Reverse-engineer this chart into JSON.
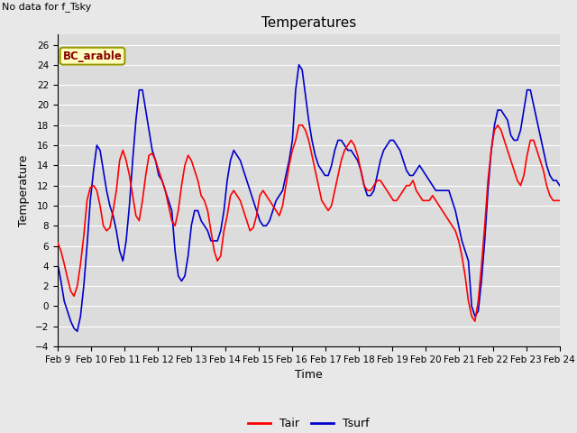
{
  "title": "Temperatures",
  "xlabel": "Time",
  "ylabel": "Temperature",
  "no_data_text": "No data for f_Tsky",
  "legend_label_text": "BC_arable",
  "ylim": [
    -4,
    27
  ],
  "yticks": [
    -4,
    -2,
    0,
    2,
    4,
    6,
    8,
    10,
    12,
    14,
    16,
    18,
    20,
    22,
    24,
    26
  ],
  "xtick_labels": [
    "Feb 9",
    "Feb 10",
    "Feb 11",
    "Feb 12",
    "Feb 13",
    "Feb 14",
    "Feb 15",
    "Feb 16",
    "Feb 17",
    "Feb 18",
    "Feb 19",
    "Feb 20",
    "Feb 21",
    "Feb 22",
    "Feb 23",
    "Feb 24"
  ],
  "tair_color": "#ff0000",
  "tsurf_color": "#0000cc",
  "background_color": "#e8e8e8",
  "plot_bg_color": "#dcdcdc",
  "grid_color": "#ffffff",
  "legend_box_facecolor": "#ffffc0",
  "legend_box_edgecolor": "#999900",
  "legend_text_color": "#880000",
  "title_fontsize": 11,
  "axis_label_fontsize": 9,
  "tick_fontsize": 7.5,
  "linewidth": 1.2,
  "tair_values": [
    6.3,
    5.5,
    4.2,
    2.8,
    1.5,
    1.0,
    2.0,
    4.2,
    7.0,
    10.5,
    11.8,
    12.0,
    11.5,
    10.0,
    8.0,
    7.5,
    7.8,
    9.5,
    11.5,
    14.5,
    15.5,
    14.5,
    13.0,
    11.0,
    9.0,
    8.5,
    10.5,
    13.0,
    15.0,
    15.2,
    14.5,
    13.5,
    12.5,
    11.5,
    10.0,
    8.5,
    8.0,
    9.5,
    12.0,
    14.0,
    15.0,
    14.5,
    13.5,
    12.5,
    11.0,
    10.5,
    9.5,
    7.5,
    5.5,
    4.5,
    5.0,
    7.5,
    9.0,
    11.0,
    11.5,
    11.0,
    10.5,
    9.5,
    8.5,
    7.5,
    7.8,
    9.0,
    11.0,
    11.5,
    11.0,
    10.5,
    10.0,
    9.5,
    9.0,
    10.0,
    12.0,
    14.0,
    15.5,
    16.5,
    18.0,
    18.0,
    17.5,
    16.5,
    15.0,
    13.5,
    12.0,
    10.5,
    10.0,
    9.5,
    10.0,
    11.5,
    13.0,
    14.5,
    15.5,
    16.0,
    16.5,
    16.0,
    15.0,
    13.5,
    12.0,
    11.5,
    11.5,
    12.0,
    12.5,
    12.5,
    12.0,
    11.5,
    11.0,
    10.5,
    10.5,
    11.0,
    11.5,
    12.0,
    12.0,
    12.5,
    11.5,
    11.0,
    10.5,
    10.5,
    10.5,
    11.0,
    10.5,
    10.0,
    9.5,
    9.0,
    8.5,
    8.0,
    7.5,
    6.5,
    5.0,
    3.0,
    0.5,
    -1.0,
    -1.5,
    0.5,
    4.0,
    8.0,
    12.5,
    15.5,
    17.5,
    18.0,
    17.5,
    16.5,
    15.5,
    14.5,
    13.5,
    12.5,
    12.0,
    13.0,
    15.0,
    16.5,
    16.5,
    15.5,
    14.5,
    13.5,
    12.0,
    11.0,
    10.5,
    10.5,
    10.5
  ],
  "tsurf_values": [
    4.2,
    2.5,
    0.5,
    -0.5,
    -1.5,
    -2.2,
    -2.5,
    -1.0,
    2.0,
    6.0,
    10.5,
    13.5,
    16.0,
    15.5,
    13.5,
    11.5,
    10.0,
    9.0,
    7.5,
    5.5,
    4.5,
    6.5,
    10.0,
    14.5,
    18.5,
    21.5,
    21.5,
    19.5,
    17.5,
    15.5,
    14.5,
    13.0,
    12.5,
    11.5,
    10.5,
    9.5,
    5.5,
    3.0,
    2.5,
    3.0,
    5.0,
    8.0,
    9.5,
    9.5,
    8.5,
    8.0,
    7.5,
    6.5,
    6.5,
    6.5,
    7.5,
    9.5,
    12.5,
    14.5,
    15.5,
    15.0,
    14.5,
    13.5,
    12.5,
    11.5,
    10.5,
    9.5,
    8.5,
    8.0,
    8.0,
    8.5,
    9.5,
    10.5,
    11.0,
    11.5,
    13.0,
    14.5,
    16.5,
    21.5,
    24.0,
    23.5,
    21.0,
    18.5,
    16.5,
    15.0,
    14.0,
    13.5,
    13.0,
    13.0,
    14.0,
    15.5,
    16.5,
    16.5,
    16.0,
    15.5,
    15.5,
    15.0,
    14.5,
    13.5,
    12.0,
    11.0,
    11.0,
    11.5,
    13.0,
    14.5,
    15.5,
    16.0,
    16.5,
    16.5,
    16.0,
    15.5,
    14.5,
    13.5,
    13.0,
    13.0,
    13.5,
    14.0,
    13.5,
    13.0,
    12.5,
    12.0,
    11.5,
    11.5,
    11.5,
    11.5,
    11.5,
    10.5,
    9.5,
    8.0,
    6.5,
    5.5,
    4.5,
    0.0,
    -1.0,
    -0.5,
    2.5,
    6.5,
    11.5,
    15.5,
    18.0,
    19.5,
    19.5,
    19.0,
    18.5,
    17.0,
    16.5,
    16.5,
    17.5,
    19.5,
    21.5,
    21.5,
    20.0,
    18.5,
    17.0,
    15.5,
    14.0,
    13.0,
    12.5,
    12.5,
    12.0
  ]
}
